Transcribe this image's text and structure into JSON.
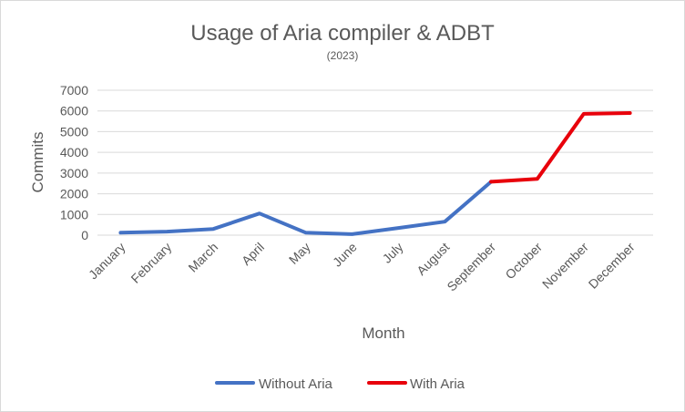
{
  "chart_data": {
    "type": "line",
    "title": "Usage of Aria compiler & ADBT",
    "subtitle": "(2023)",
    "xlabel": "Month",
    "ylabel": "Commits",
    "categories": [
      "January",
      "February",
      "March",
      "April",
      "May",
      "June",
      "July",
      "August",
      "September",
      "October",
      "November",
      "December"
    ],
    "ylim": [
      0,
      7000
    ],
    "yticks": [
      0,
      1000,
      2000,
      3000,
      4000,
      5000,
      6000,
      7000
    ],
    "grid": true,
    "legend_position": "bottom",
    "series": [
      {
        "name": "Without Aria",
        "color": "#4472C4",
        "values": [
          120,
          170,
          300,
          1050,
          120,
          50,
          350,
          650,
          2580,
          null,
          null,
          null
        ]
      },
      {
        "name": "With Aria",
        "color": "#E8000B",
        "values": [
          null,
          null,
          null,
          null,
          null,
          null,
          null,
          null,
          2580,
          2720,
          5860,
          5900
        ]
      }
    ]
  }
}
